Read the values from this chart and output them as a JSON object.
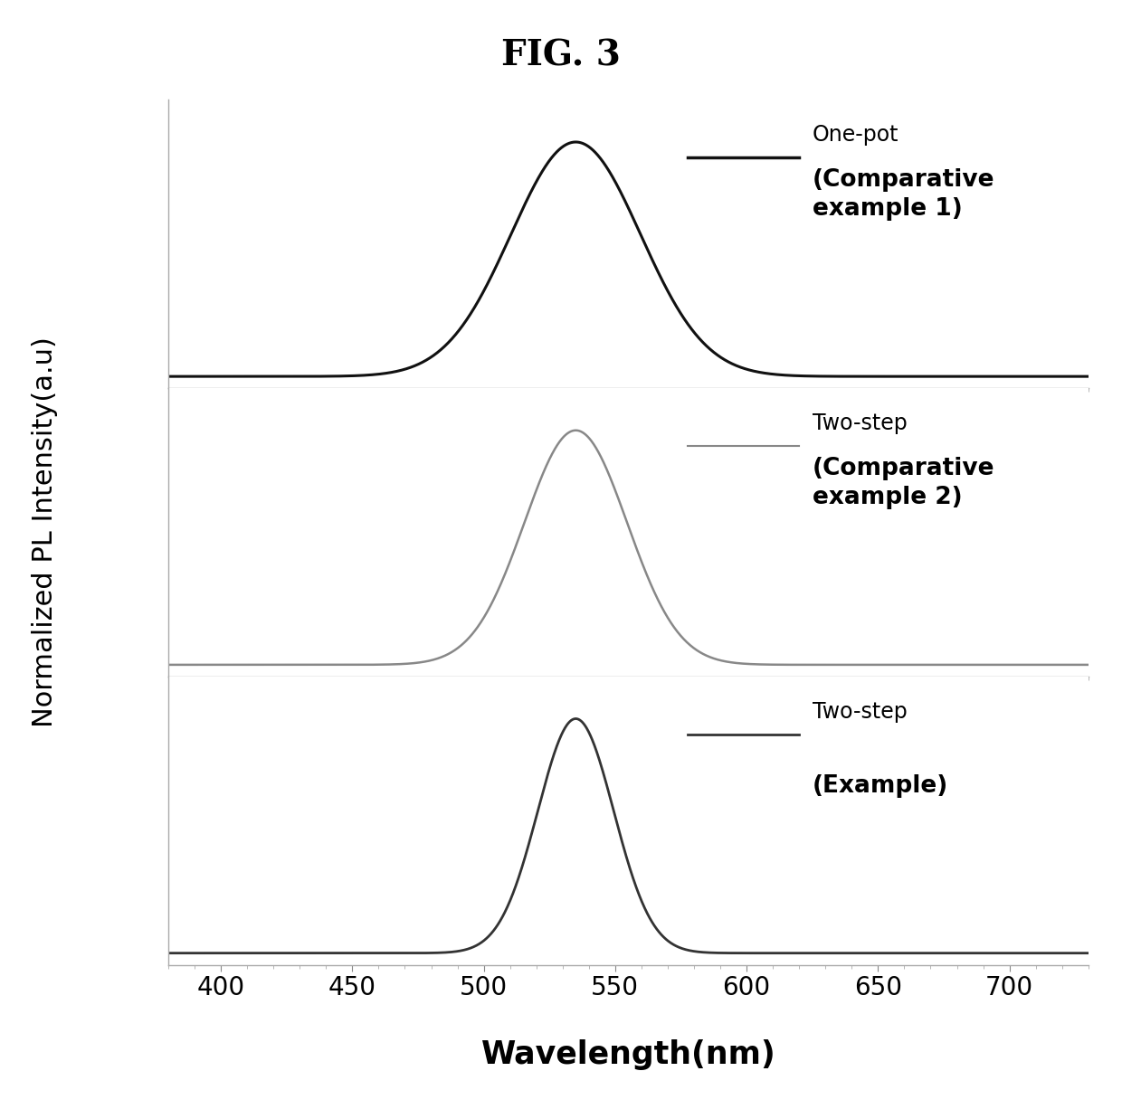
{
  "title": "FIG. 3",
  "xlabel": "Wavelength(nm)",
  "ylabel": "Normalized PL Intensity(a.u)",
  "x_min": 380,
  "x_max": 730,
  "x_ticks": [
    400,
    450,
    500,
    550,
    600,
    650,
    700
  ],
  "panels": [
    {
      "label": "One-pot",
      "label2": "(Comparative\nexample 1)",
      "peak": 535,
      "fwhm": 58,
      "color": "#111111",
      "linewidth": 2.2,
      "lw_legend": 2.5
    },
    {
      "label": "Two-step",
      "label2": "(Comparative\nexample 2)",
      "peak": 535,
      "fwhm": 46,
      "color": "#888888",
      "linewidth": 1.8,
      "lw_legend": 1.5
    },
    {
      "label": "Two-step",
      "label2": "(Example)",
      "peak": 535,
      "fwhm": 34,
      "color": "#333333",
      "linewidth": 2.0,
      "lw_legend": 2.0
    }
  ],
  "background_color": "#ffffff",
  "title_fontsize": 28,
  "axis_label_fontsize": 22,
  "tick_fontsize": 20,
  "legend_fontsize": 17
}
